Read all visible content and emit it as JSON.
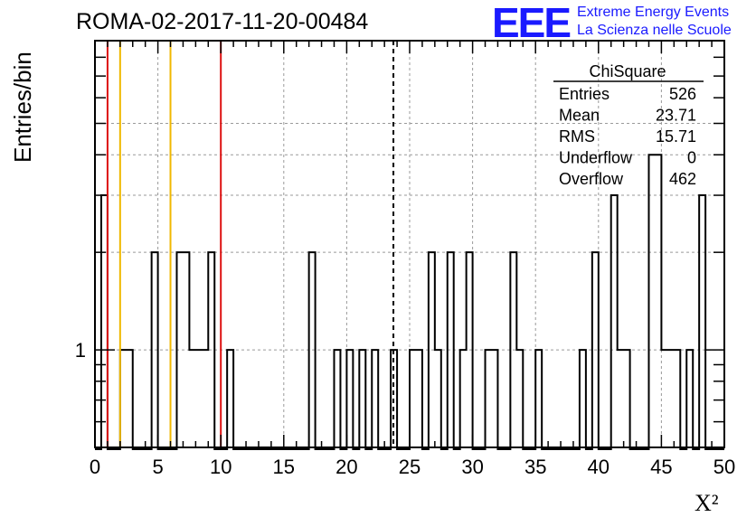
{
  "header": {
    "run_title": "ROMA-02-2017-11-20-00484",
    "logo_letters": "EEE",
    "logo_line1": "Extreme Energy Events",
    "logo_line2": "La Scienza nelle Scuole"
  },
  "stats": {
    "title": "ChiSquare",
    "rows": [
      {
        "label": "Entries",
        "value": "526"
      },
      {
        "label": "Mean",
        "value": "23.71"
      },
      {
        "label": "RMS",
        "value": "15.71"
      },
      {
        "label": "Underflow",
        "value": "0"
      },
      {
        "label": "Overflow",
        "value": "462"
      }
    ]
  },
  "colors": {
    "frame": "#000000",
    "grid": "#9a9a9a",
    "histogram": "#000000",
    "line_red": "#dd1111",
    "line_yellow": "#f0b800",
    "logo": "#1a1aff"
  },
  "chart_data": {
    "type": "bar",
    "style": "step-histogram",
    "title": "ROMA-02-2017-11-20-00484",
    "xlabel": "X²",
    "ylabel": "Entries/bin",
    "xlim": [
      0,
      50
    ],
    "ylim": [
      0.5,
      9
    ],
    "yscale": "log",
    "grid": true,
    "bin_width": 0.5,
    "x_ticks": [
      0,
      5,
      10,
      15,
      20,
      25,
      30,
      35,
      40,
      45,
      50
    ],
    "y_tick_labels": [
      {
        "value": 1,
        "label": "1"
      }
    ],
    "bins": [
      {
        "x": 0.5,
        "y": 3
      },
      {
        "x": 2.0,
        "y": 1
      },
      {
        "x": 2.5,
        "y": 1
      },
      {
        "x": 4.5,
        "y": 2
      },
      {
        "x": 6.5,
        "y": 2
      },
      {
        "x": 7.0,
        "y": 2
      },
      {
        "x": 7.5,
        "y": 1
      },
      {
        "x": 8.0,
        "y": 1
      },
      {
        "x": 8.5,
        "y": 1
      },
      {
        "x": 9.0,
        "y": 2
      },
      {
        "x": 10.5,
        "y": 1
      },
      {
        "x": 17.0,
        "y": 2
      },
      {
        "x": 19.0,
        "y": 1
      },
      {
        "x": 20.0,
        "y": 1
      },
      {
        "x": 21.0,
        "y": 1
      },
      {
        "x": 22.0,
        "y": 1
      },
      {
        "x": 23.5,
        "y": 1
      },
      {
        "x": 25.0,
        "y": 1
      },
      {
        "x": 25.5,
        "y": 1
      },
      {
        "x": 26.5,
        "y": 2
      },
      {
        "x": 27.0,
        "y": 1
      },
      {
        "x": 28.0,
        "y": 2
      },
      {
        "x": 29.0,
        "y": 1
      },
      {
        "x": 29.5,
        "y": 2
      },
      {
        "x": 31.0,
        "y": 1
      },
      {
        "x": 31.5,
        "y": 1
      },
      {
        "x": 33.0,
        "y": 2
      },
      {
        "x": 33.5,
        "y": 1
      },
      {
        "x": 35.0,
        "y": 1
      },
      {
        "x": 38.5,
        "y": 1
      },
      {
        "x": 39.5,
        "y": 2
      },
      {
        "x": 41.0,
        "y": 3
      },
      {
        "x": 41.5,
        "y": 1
      },
      {
        "x": 42.0,
        "y": 1
      },
      {
        "x": 44.0,
        "y": 4
      },
      {
        "x": 44.5,
        "y": 4
      },
      {
        "x": 45.0,
        "y": 1
      },
      {
        "x": 45.5,
        "y": 1
      },
      {
        "x": 46.0,
        "y": 1
      },
      {
        "x": 47.0,
        "y": 1
      },
      {
        "x": 48.0,
        "y": 3
      }
    ],
    "vertical_lines": [
      {
        "x": 1.0,
        "color": "#dd1111",
        "dashed": false
      },
      {
        "x": 2.0,
        "color": "#f0b800",
        "dashed": false
      },
      {
        "x": 6.0,
        "color": "#f0b800",
        "dashed": false
      },
      {
        "x": 10.0,
        "color": "#dd1111",
        "dashed": false
      },
      {
        "x": 23.71,
        "color": "#000000",
        "dashed": true
      }
    ]
  }
}
